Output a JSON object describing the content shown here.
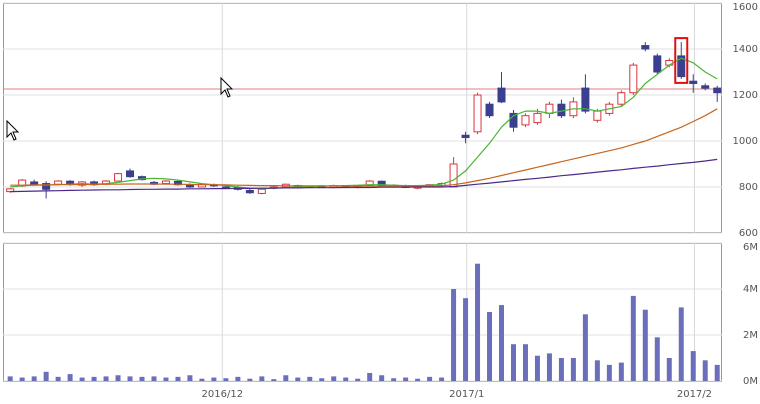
{
  "chart_data": [
    {
      "type": "candlestick",
      "xlim": [
        -0.6,
        59.4
      ],
      "ylim": [
        600,
        1600
      ],
      "yticks": [
        600,
        800,
        1000,
        1200,
        1400,
        1600
      ],
      "grid": true,
      "up_color": "#d9363e",
      "down_color": "#3a3f8f",
      "open": [
        780,
        805,
        822,
        815,
        812,
        825,
        808,
        822,
        812,
        826,
        870,
        845,
        820,
        815,
        824,
        808,
        800,
        810,
        800,
        798,
        785,
        772,
        795,
        800,
        806,
        800,
        803,
        798,
        805,
        800,
        808,
        825,
        806,
        805,
        795,
        800,
        806,
        800,
        1025,
        1040,
        1160,
        1230,
        1120,
        1070,
        1080,
        1120,
        1160,
        1110,
        1230,
        1090,
        1120,
        1160,
        1210,
        1415,
        1370,
        1330,
        1370,
        1260,
        1240,
        1230
      ],
      "high": [
        795,
        835,
        832,
        825,
        830,
        830,
        826,
        828,
        830,
        862,
        880,
        850,
        826,
        830,
        828,
        816,
        815,
        815,
        808,
        805,
        795,
        792,
        805,
        815,
        810,
        806,
        808,
        810,
        808,
        808,
        830,
        828,
        812,
        810,
        806,
        812,
        820,
        930,
        1040,
        1210,
        1170,
        1300,
        1135,
        1120,
        1140,
        1170,
        1180,
        1190,
        1290,
        1140,
        1170,
        1220,
        1340,
        1430,
        1380,
        1360,
        1430,
        1290,
        1250,
        1240
      ],
      "low": [
        775,
        800,
        805,
        750,
        808,
        805,
        800,
        805,
        808,
        824,
        840,
        828,
        808,
        812,
        806,
        796,
        798,
        800,
        792,
        785,
        770,
        768,
        790,
        798,
        798,
        795,
        796,
        795,
        795,
        794,
        805,
        800,
        800,
        795,
        790,
        798,
        802,
        798,
        990,
        1030,
        1100,
        1165,
        1040,
        1060,
        1070,
        1100,
        1100,
        1100,
        1120,
        1080,
        1110,
        1150,
        1200,
        1390,
        1290,
        1320,
        1270,
        1210,
        1220,
        1170
      ],
      "close": [
        792,
        830,
        810,
        790,
        826,
        812,
        822,
        810,
        826,
        858,
        845,
        832,
        812,
        826,
        810,
        800,
        812,
        805,
        796,
        790,
        775,
        790,
        800,
        812,
        802,
        804,
        798,
        806,
        798,
        805,
        826,
        805,
        808,
        798,
        802,
        810,
        815,
        900,
        1015,
        1200,
        1110,
        1170,
        1060,
        1110,
        1120,
        1160,
        1110,
        1170,
        1130,
        1130,
        1160,
        1210,
        1330,
        1400,
        1300,
        1350,
        1280,
        1250,
        1230,
        1210
      ],
      "series": [
        {
          "color": "#49b534",
          "values": [
            800,
            805,
            808,
            808,
            810,
            812,
            815,
            812,
            815,
            820,
            828,
            835,
            838,
            835,
            830,
            822,
            815,
            810,
            806,
            800,
            795,
            792,
            795,
            798,
            800,
            802,
            804,
            805,
            806,
            808,
            810,
            810,
            808,
            806,
            806,
            808,
            812,
            830,
            870,
            930,
            990,
            1060,
            1110,
            1130,
            1130,
            1120,
            1130,
            1140,
            1140,
            1130,
            1140,
            1150,
            1190,
            1250,
            1290,
            1330,
            1360,
            1340,
            1300,
            1270
          ]
        },
        {
          "color": "#c8641e",
          "values": [
            808,
            808,
            809,
            809,
            810,
            810,
            811,
            811,
            812,
            812,
            813,
            813,
            813,
            812,
            812,
            811,
            810,
            810,
            809,
            808,
            807,
            806,
            806,
            805,
            805,
            805,
            805,
            804,
            804,
            804,
            804,
            804,
            804,
            804,
            804,
            804,
            805,
            810,
            818,
            828,
            838,
            850,
            862,
            874,
            886,
            898,
            910,
            922,
            934,
            946,
            958,
            970,
            985,
            1000,
            1020,
            1040,
            1060,
            1085,
            1110,
            1140
          ]
        },
        {
          "color": "#4b2a8c",
          "values": [
            780,
            781,
            782,
            783,
            784,
            785,
            786,
            787,
            788,
            788,
            789,
            790,
            790,
            791,
            791,
            792,
            792,
            793,
            793,
            794,
            794,
            795,
            795,
            796,
            796,
            797,
            797,
            797,
            798,
            798,
            798,
            799,
            799,
            799,
            800,
            800,
            800,
            802,
            807,
            812,
            817,
            822,
            828,
            833,
            838,
            843,
            849,
            854,
            859,
            865,
            870,
            875,
            881,
            886,
            891,
            897,
            902,
            907,
            913,
            920
          ]
        }
      ],
      "hline": 1226,
      "hline_color": "#e08080",
      "highlight": 56,
      "highlight_color": "#e01010"
    },
    {
      "type": "bar",
      "xlim": [
        -0.6,
        59.4
      ],
      "ylim": [
        0,
        6000000
      ],
      "yticks": [
        {
          "value": 0,
          "label": "0M"
        },
        {
          "value": 2000000,
          "label": "2M"
        },
        {
          "value": 4000000,
          "label": "4M"
        },
        {
          "value": 6000000,
          "label": "6M"
        }
      ],
      "xticks": [
        {
          "value": 17.7,
          "label": "2016/12"
        },
        {
          "value": 38.1,
          "label": "2017/1"
        },
        {
          "value": 57.1,
          "label": "2017/2"
        }
      ],
      "grid": true,
      "color": "#6b6fbb",
      "values": [
        200000,
        150000,
        200000,
        400000,
        180000,
        300000,
        150000,
        180000,
        200000,
        250000,
        200000,
        180000,
        200000,
        150000,
        180000,
        250000,
        100000,
        150000,
        120000,
        180000,
        100000,
        200000,
        80000,
        250000,
        150000,
        180000,
        120000,
        200000,
        150000,
        100000,
        350000,
        250000,
        120000,
        150000,
        100000,
        180000,
        150000,
        4000000,
        3600000,
        5100000,
        3000000,
        3300000,
        1600000,
        1600000,
        1100000,
        1200000,
        1000000,
        1000000,
        2900000,
        900000,
        700000,
        800000,
        3700000,
        3100000,
        1900000,
        1000000,
        3200000,
        1300000,
        900000,
        700000
      ]
    }
  ]
}
